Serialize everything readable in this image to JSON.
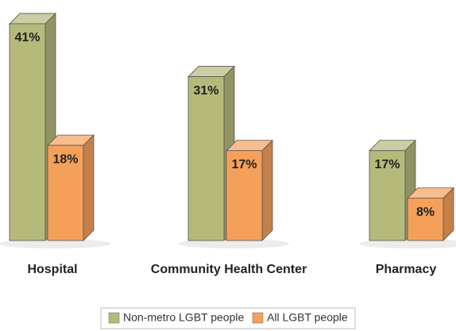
{
  "chart_data": {
    "type": "bar3d",
    "categories": [
      "Hospital",
      "Community Health Center",
      "Pharmacy"
    ],
    "series": [
      {
        "name": "Non-metro LGBT people",
        "color": "#b5b97a",
        "values": [
          41,
          31,
          17
        ],
        "value_labels": [
          "41%",
          "31%",
          "17%"
        ]
      },
      {
        "name": "All LGBT people",
        "color": "#f5a05a",
        "values": [
          18,
          17,
          8
        ],
        "value_labels": [
          "18%",
          "17%",
          "8%"
        ]
      }
    ]
  }
}
